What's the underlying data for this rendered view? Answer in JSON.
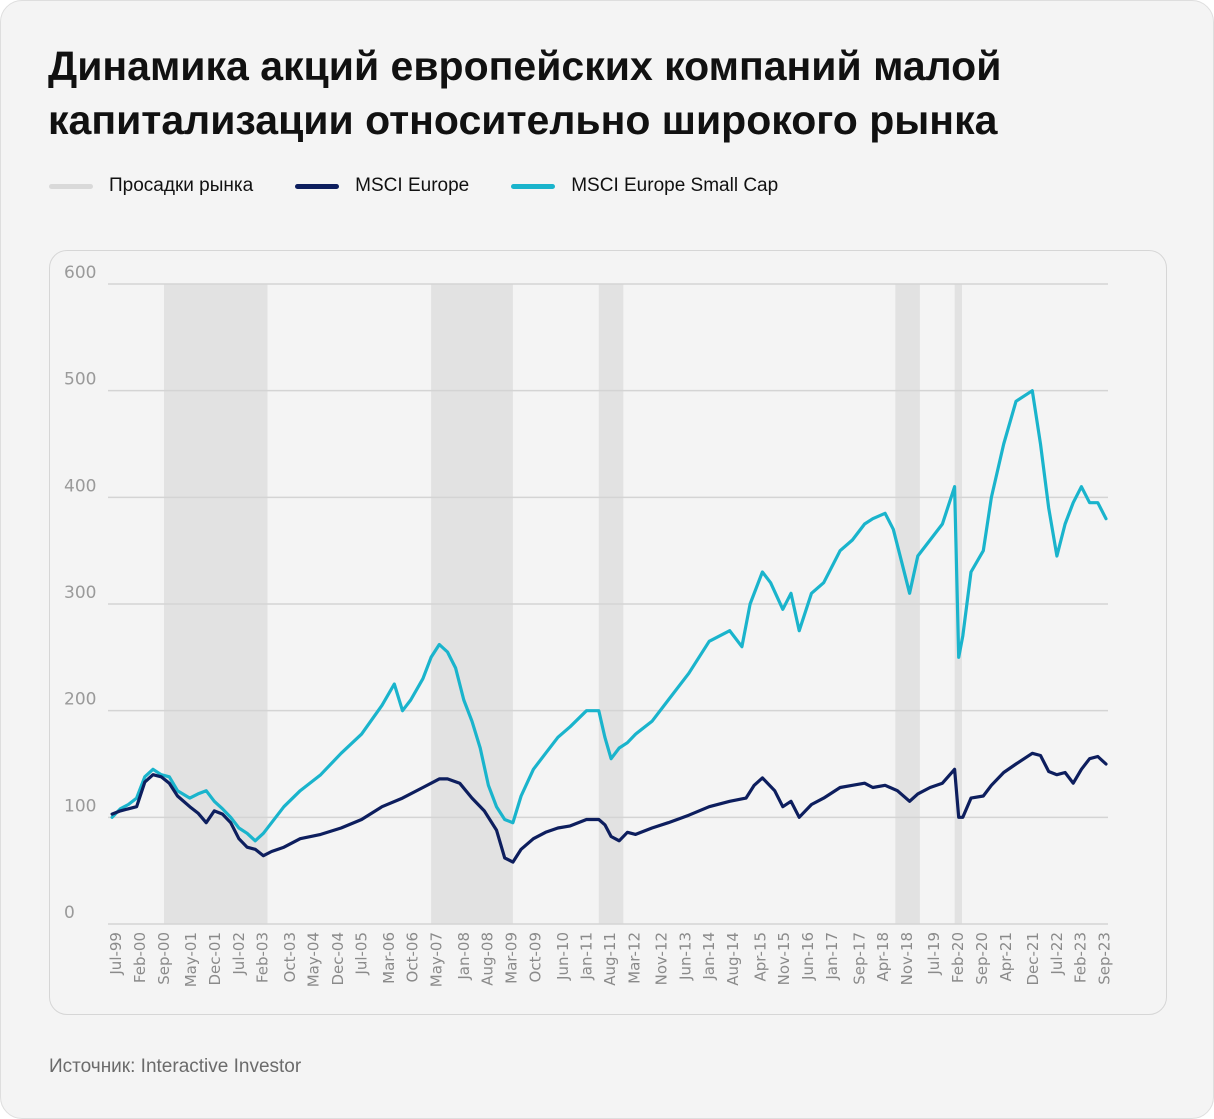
{
  "title": "Динамика акций европейских компаний малой капитализации относительно широкого рынка",
  "source": "Источник: Interactive Investor",
  "colors": {
    "drawdown": "#e2e2e2",
    "msci_europe": "#0d1e5e",
    "msci_small_cap": "#1ab4cc",
    "grid": "#d4d4d4"
  },
  "legend": [
    {
      "label": "Просадки рынка",
      "color": "#d9d9d9"
    },
    {
      "label": "MSCI Europe",
      "color": "#0d1e5e"
    },
    {
      "label": "MSCI Europe Small Cap",
      "color": "#1ab4cc"
    }
  ],
  "chart_data": {
    "type": "line",
    "title": "Динамика акций европейских компаний малой капитализации относительно широкого рынка",
    "xlabel": "",
    "ylabel": "",
    "ylim": [
      0,
      600
    ],
    "yticks": [
      0,
      100,
      200,
      300,
      400,
      500,
      600
    ],
    "xlim": [
      1999.3,
      2023.75
    ],
    "xticks": [
      {
        "label": "Jul-99",
        "x": 1999.5
      },
      {
        "label": "Feb-00",
        "x": 2000.08
      },
      {
        "label": "Sep-00",
        "x": 2000.67
      },
      {
        "label": "May-01",
        "x": 2001.33
      },
      {
        "label": "Dec-01",
        "x": 2001.92
      },
      {
        "label": "Jul-02",
        "x": 2002.5
      },
      {
        "label": "Feb-03",
        "x": 2003.08
      },
      {
        "label": "Oct-03",
        "x": 2003.75
      },
      {
        "label": "May-04",
        "x": 2004.33
      },
      {
        "label": "Dec-04",
        "x": 2004.92
      },
      {
        "label": "Jul-05",
        "x": 2005.5
      },
      {
        "label": "Mar-06",
        "x": 2006.17
      },
      {
        "label": "Oct-06",
        "x": 2006.75
      },
      {
        "label": "May-07",
        "x": 2007.33
      },
      {
        "label": "Jan-08",
        "x": 2008.0
      },
      {
        "label": "Aug-08",
        "x": 2008.58
      },
      {
        "label": "Mar-09",
        "x": 2009.17
      },
      {
        "label": "Oct-09",
        "x": 2009.75
      },
      {
        "label": "Jun-10",
        "x": 2010.42
      },
      {
        "label": "Jan-11",
        "x": 2011.0
      },
      {
        "label": "Aug-11",
        "x": 2011.58
      },
      {
        "label": "Mar-12",
        "x": 2012.17
      },
      {
        "label": "Nov-12",
        "x": 2012.83
      },
      {
        "label": "Jun-13",
        "x": 2013.42
      },
      {
        "label": "Jan-14",
        "x": 2014.0
      },
      {
        "label": "Aug-14",
        "x": 2014.58
      },
      {
        "label": "Apr-15",
        "x": 2015.25
      },
      {
        "label": "Nov-15",
        "x": 2015.83
      },
      {
        "label": "Jun-16",
        "x": 2016.42
      },
      {
        "label": "Jan-17",
        "x": 2017.0
      },
      {
        "label": "Sep-17",
        "x": 2017.67
      },
      {
        "label": "Apr-18",
        "x": 2018.25
      },
      {
        "label": "Nov-18",
        "x": 2018.83
      },
      {
        "label": "Jul-19",
        "x": 2019.5
      },
      {
        "label": "Feb-20",
        "x": 2020.08
      },
      {
        "label": "Sep-20",
        "x": 2020.67
      },
      {
        "label": "Apr-21",
        "x": 2021.25
      },
      {
        "label": "Dec-21",
        "x": 2021.92
      },
      {
        "label": "Jul-22",
        "x": 2022.5
      },
      {
        "label": "Feb-23",
        "x": 2023.08
      },
      {
        "label": "Sep-23",
        "x": 2023.67
      }
    ],
    "drawdowns": [
      {
        "start": 2000.67,
        "end": 2003.2
      },
      {
        "start": 2007.2,
        "end": 2009.2
      },
      {
        "start": 2011.3,
        "end": 2011.9
      },
      {
        "start": 2018.55,
        "end": 2019.15
      },
      {
        "start": 2020.0,
        "end": 2020.18
      }
    ],
    "series": [
      {
        "name": "MSCI Europe",
        "color": "#0d1e5e",
        "x": [
          1999.4,
          1999.6,
          1999.8,
          2000.0,
          2000.2,
          2000.4,
          2000.6,
          2000.8,
          2001.0,
          2001.3,
          2001.5,
          2001.7,
          2001.9,
          2002.1,
          2002.3,
          2002.5,
          2002.7,
          2002.9,
          2003.1,
          2003.3,
          2003.6,
          2004.0,
          2004.5,
          2005.0,
          2005.5,
          2006.0,
          2006.5,
          2007.0,
          2007.4,
          2007.6,
          2007.9,
          2008.2,
          2008.5,
          2008.8,
          2009.0,
          2009.2,
          2009.4,
          2009.7,
          2010.0,
          2010.3,
          2010.6,
          2011.0,
          2011.3,
          2011.45,
          2011.6,
          2011.8,
          2012.0,
          2012.2,
          2012.6,
          2013.0,
          2013.5,
          2014.0,
          2014.5,
          2014.9,
          2015.1,
          2015.3,
          2015.6,
          2015.8,
          2016.0,
          2016.2,
          2016.5,
          2016.8,
          2017.2,
          2017.5,
          2017.8,
          2018.0,
          2018.3,
          2018.6,
          2018.9,
          2019.1,
          2019.4,
          2019.7,
          2020.0,
          2020.1,
          2020.2,
          2020.4,
          2020.7,
          2020.9,
          2021.2,
          2021.5,
          2021.9,
          2022.1,
          2022.3,
          2022.5,
          2022.7,
          2022.9,
          2023.1,
          2023.3,
          2023.5,
          2023.7
        ],
        "values": [
          103,
          106,
          108,
          110,
          133,
          140,
          138,
          132,
          120,
          110,
          104,
          95,
          106,
          103,
          95,
          80,
          72,
          70,
          64,
          68,
          72,
          80,
          84,
          90,
          98,
          110,
          118,
          128,
          136,
          136,
          132,
          118,
          106,
          88,
          62,
          58,
          70,
          80,
          86,
          90,
          92,
          98,
          98,
          93,
          82,
          78,
          86,
          84,
          90,
          95,
          102,
          110,
          115,
          118,
          130,
          137,
          125,
          110,
          115,
          100,
          112,
          118,
          128,
          130,
          132,
          128,
          130,
          125,
          115,
          122,
          128,
          132,
          145,
          100,
          100,
          118,
          120,
          130,
          142,
          150,
          160,
          158,
          143,
          140,
          142,
          132,
          145,
          155,
          157,
          150
        ]
      },
      {
        "name": "MSCI Europe Small Cap",
        "color": "#1ab4cc",
        "x": [
          1999.4,
          1999.6,
          1999.8,
          2000.0,
          2000.2,
          2000.4,
          2000.6,
          2000.8,
          2001.0,
          2001.3,
          2001.5,
          2001.7,
          2001.9,
          2002.1,
          2002.3,
          2002.5,
          2002.7,
          2002.9,
          2003.1,
          2003.3,
          2003.6,
          2004.0,
          2004.5,
          2005.0,
          2005.5,
          2006.0,
          2006.3,
          2006.5,
          2006.7,
          2007.0,
          2007.2,
          2007.4,
          2007.6,
          2007.8,
          2008.0,
          2008.2,
          2008.4,
          2008.6,
          2008.8,
          2009.0,
          2009.2,
          2009.4,
          2009.7,
          2010.0,
          2010.3,
          2010.6,
          2011.0,
          2011.3,
          2011.45,
          2011.6,
          2011.8,
          2012.0,
          2012.2,
          2012.6,
          2013.0,
          2013.5,
          2014.0,
          2014.5,
          2014.8,
          2015.0,
          2015.3,
          2015.5,
          2015.8,
          2016.0,
          2016.2,
          2016.5,
          2016.8,
          2017.2,
          2017.5,
          2017.8,
          2018.0,
          2018.3,
          2018.5,
          2018.7,
          2018.9,
          2019.1,
          2019.4,
          2019.7,
          2020.0,
          2020.1,
          2020.2,
          2020.4,
          2020.7,
          2020.9,
          2021.2,
          2021.5,
          2021.9,
          2022.1,
          2022.3,
          2022.5,
          2022.7,
          2022.9,
          2023.1,
          2023.3,
          2023.5,
          2023.7
        ],
        "values": [
          100,
          108,
          112,
          118,
          138,
          145,
          140,
          138,
          125,
          118,
          122,
          125,
          115,
          108,
          100,
          90,
          85,
          78,
          85,
          95,
          110,
          125,
          140,
          160,
          178,
          205,
          225,
          200,
          210,
          230,
          250,
          262,
          255,
          240,
          210,
          190,
          165,
          130,
          110,
          98,
          95,
          120,
          145,
          160,
          175,
          185,
          200,
          200,
          175,
          155,
          165,
          170,
          178,
          190,
          210,
          235,
          265,
          275,
          260,
          300,
          330,
          320,
          295,
          310,
          275,
          310,
          320,
          350,
          360,
          375,
          380,
          385,
          370,
          340,
          310,
          345,
          360,
          375,
          410,
          250,
          270,
          330,
          350,
          400,
          450,
          490,
          500,
          450,
          390,
          345,
          375,
          395,
          410,
          395,
          395,
          380
        ]
      }
    ]
  }
}
